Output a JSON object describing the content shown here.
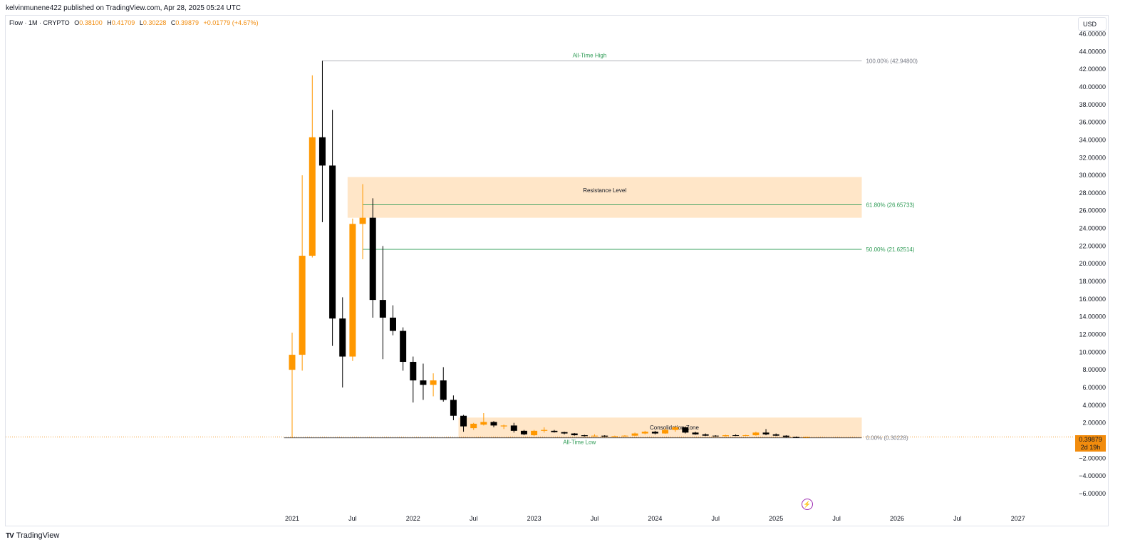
{
  "header": {
    "publisher_line": "kelvinmunene422 published on TradingView.com, Apr 28, 2025 05:24 UTC"
  },
  "legend": {
    "symbol": "Flow · 1M · CRYPTO",
    "open_label": "O",
    "open": "0.38100",
    "high_label": "H",
    "high": "0.41709",
    "low_label": "L",
    "low": "0.30228",
    "close_label": "C",
    "close": "0.39879",
    "change": "+0.01779 (+4.67%)"
  },
  "currency": "USD",
  "price_tag": {
    "price": "0.39879",
    "countdown": "2d 19h"
  },
  "footer": {
    "logo": "TV",
    "brand": "TradingView"
  },
  "colors": {
    "up": "#ff9800",
    "down": "#000000",
    "zone": "#ffe6c8",
    "green": "#2e9b55",
    "fib_text": "#787b86"
  },
  "chart_data": {
    "type": "candlestick",
    "interval": "1M",
    "y_axis": {
      "ylim": [
        -7.0,
        47.0
      ],
      "ticks": [
        "46.00000",
        "44.00000",
        "42.00000",
        "40.00000",
        "38.00000",
        "36.00000",
        "34.00000",
        "32.00000",
        "30.00000",
        "28.00000",
        "26.00000",
        "24.00000",
        "22.00000",
        "20.00000",
        "18.00000",
        "16.00000",
        "14.00000",
        "12.00000",
        "10.00000",
        "8.00000",
        "6.00000",
        "4.00000",
        "2.00000",
        "0.00000",
        "−2.00000",
        "−4.00000",
        "−6.00000"
      ]
    },
    "x_axis": {
      "ticks": [
        {
          "label": "2021",
          "month": 0
        },
        {
          "label": "Jul",
          "month": 6
        },
        {
          "label": "2022",
          "month": 12
        },
        {
          "label": "Jul",
          "month": 18
        },
        {
          "label": "2023",
          "month": 24
        },
        {
          "label": "Jul",
          "month": 30
        },
        {
          "label": "2024",
          "month": 36
        },
        {
          "label": "Jul",
          "month": 42
        },
        {
          "label": "2025",
          "month": 48
        },
        {
          "label": "Jul",
          "month": 54
        },
        {
          "label": "2026",
          "month": 60
        },
        {
          "label": "Jul",
          "month": 66
        },
        {
          "label": "2027",
          "month": 72
        }
      ],
      "month_index_note": "0 = Jan 2021"
    },
    "candles": [
      {
        "m": 0,
        "o": 8.0,
        "h": 12.2,
        "l": 0.3,
        "c": 9.7
      },
      {
        "m": 1,
        "o": 9.7,
        "h": 30.0,
        "l": 7.9,
        "c": 20.9
      },
      {
        "m": 2,
        "o": 20.9,
        "h": 41.3,
        "l": 20.7,
        "c": 34.3
      },
      {
        "m": 3,
        "o": 34.3,
        "h": 42.948,
        "l": 24.7,
        "c": 31.1
      },
      {
        "m": 4,
        "o": 31.1,
        "h": 37.4,
        "l": 10.7,
        "c": 13.8
      },
      {
        "m": 5,
        "o": 13.8,
        "h": 16.2,
        "l": 6.0,
        "c": 9.5
      },
      {
        "m": 6,
        "o": 9.5,
        "h": 25.1,
        "l": 9.0,
        "c": 24.5
      },
      {
        "m": 7,
        "o": 24.5,
        "h": 29.0,
        "l": 20.5,
        "c": 25.2
      },
      {
        "m": 8,
        "o": 25.2,
        "h": 27.4,
        "l": 13.9,
        "c": 15.9
      },
      {
        "m": 9,
        "o": 15.9,
        "h": 22.0,
        "l": 9.2,
        "c": 13.9
      },
      {
        "m": 10,
        "o": 13.9,
        "h": 15.3,
        "l": 11.9,
        "c": 12.4
      },
      {
        "m": 11,
        "o": 12.4,
        "h": 12.8,
        "l": 7.9,
        "c": 8.9
      },
      {
        "m": 12,
        "o": 8.9,
        "h": 9.5,
        "l": 4.3,
        "c": 6.8
      },
      {
        "m": 13,
        "o": 6.8,
        "h": 8.7,
        "l": 4.6,
        "c": 6.3
      },
      {
        "m": 14,
        "o": 6.3,
        "h": 7.6,
        "l": 5.0,
        "c": 6.8
      },
      {
        "m": 15,
        "o": 6.8,
        "h": 8.3,
        "l": 4.4,
        "c": 4.6
      },
      {
        "m": 16,
        "o": 4.6,
        "h": 5.1,
        "l": 2.3,
        "c": 2.8
      },
      {
        "m": 17,
        "o": 2.8,
        "h": 2.9,
        "l": 1.0,
        "c": 1.6
      },
      {
        "m": 18,
        "o": 1.4,
        "h": 2.0,
        "l": 1.2,
        "c": 1.9
      },
      {
        "m": 19,
        "o": 1.8,
        "h": 3.1,
        "l": 1.7,
        "c": 2.1
      },
      {
        "m": 20,
        "o": 2.1,
        "h": 2.2,
        "l": 1.5,
        "c": 1.7
      },
      {
        "m": 21,
        "o": 1.6,
        "h": 1.8,
        "l": 1.3,
        "c": 1.7
      },
      {
        "m": 22,
        "o": 1.7,
        "h": 2.0,
        "l": 0.9,
        "c": 1.1
      },
      {
        "m": 23,
        "o": 1.1,
        "h": 1.2,
        "l": 0.6,
        "c": 0.7
      },
      {
        "m": 24,
        "o": 0.6,
        "h": 1.2,
        "l": 0.5,
        "c": 1.1
      },
      {
        "m": 25,
        "o": 1.1,
        "h": 1.5,
        "l": 0.9,
        "c": 1.2
      },
      {
        "m": 26,
        "o": 1.1,
        "h": 1.2,
        "l": 0.9,
        "c": 0.95
      },
      {
        "m": 27,
        "o": 0.95,
        "h": 1.0,
        "l": 0.7,
        "c": 0.8
      },
      {
        "m": 28,
        "o": 0.8,
        "h": 0.85,
        "l": 0.55,
        "c": 0.6
      },
      {
        "m": 29,
        "o": 0.6,
        "h": 0.65,
        "l": 0.45,
        "c": 0.5
      },
      {
        "m": 30,
        "o": 0.5,
        "h": 0.7,
        "l": 0.45,
        "c": 0.55
      },
      {
        "m": 31,
        "o": 0.55,
        "h": 0.6,
        "l": 0.42,
        "c": 0.45
      },
      {
        "m": 32,
        "o": 0.45,
        "h": 0.55,
        "l": 0.4,
        "c": 0.5
      },
      {
        "m": 33,
        "o": 0.5,
        "h": 0.6,
        "l": 0.45,
        "c": 0.55
      },
      {
        "m": 34,
        "o": 0.55,
        "h": 0.9,
        "l": 0.5,
        "c": 0.8
      },
      {
        "m": 35,
        "o": 0.8,
        "h": 1.1,
        "l": 0.7,
        "c": 1.0
      },
      {
        "m": 36,
        "o": 1.0,
        "h": 1.1,
        "l": 0.7,
        "c": 0.8
      },
      {
        "m": 37,
        "o": 0.8,
        "h": 1.4,
        "l": 0.75,
        "c": 1.2
      },
      {
        "m": 38,
        "o": 1.2,
        "h": 1.6,
        "l": 1.0,
        "c": 1.5
      },
      {
        "m": 39,
        "o": 1.5,
        "h": 1.6,
        "l": 0.8,
        "c": 0.9
      },
      {
        "m": 40,
        "o": 0.9,
        "h": 1.0,
        "l": 0.65,
        "c": 0.7
      },
      {
        "m": 41,
        "o": 0.7,
        "h": 0.8,
        "l": 0.5,
        "c": 0.55
      },
      {
        "m": 42,
        "o": 0.55,
        "h": 0.6,
        "l": 0.45,
        "c": 0.5
      },
      {
        "m": 43,
        "o": 0.5,
        "h": 0.65,
        "l": 0.45,
        "c": 0.6
      },
      {
        "m": 44,
        "o": 0.6,
        "h": 0.7,
        "l": 0.5,
        "c": 0.55
      },
      {
        "m": 45,
        "o": 0.55,
        "h": 0.65,
        "l": 0.5,
        "c": 0.6
      },
      {
        "m": 46,
        "o": 0.6,
        "h": 1.0,
        "l": 0.55,
        "c": 0.9
      },
      {
        "m": 47,
        "o": 0.9,
        "h": 1.3,
        "l": 0.6,
        "c": 0.7
      },
      {
        "m": 48,
        "o": 0.7,
        "h": 0.8,
        "l": 0.5,
        "c": 0.55
      },
      {
        "m": 49,
        "o": 0.55,
        "h": 0.6,
        "l": 0.35,
        "c": 0.4
      },
      {
        "m": 50,
        "o": 0.4,
        "h": 0.45,
        "l": 0.32,
        "c": 0.38
      },
      {
        "m": 51,
        "o": 0.381,
        "h": 0.41709,
        "l": 0.30228,
        "c": 0.39879
      }
    ],
    "fib_levels": [
      {
        "label": "100.00% (42.94800)",
        "value": 42.948,
        "color": "#787b86",
        "from_month": 3,
        "to_month": 56.5
      },
      {
        "label": "61.80% (26.65733)",
        "value": 26.65733,
        "color": "#2e9b55",
        "from_month": 7,
        "to_month": 56.5
      },
      {
        "label": "50.00% (21.62514)",
        "value": 21.62514,
        "color": "#2e9b55",
        "from_month": 7,
        "to_month": 56.5
      },
      {
        "label": "0.00% (0.30228)",
        "value": 0.30228,
        "color": "#787b86",
        "from_month": -0.8,
        "to_month": 56.5
      }
    ],
    "zones": [
      {
        "label": "Resistance Level",
        "y_from": 25.2,
        "y_to": 29.8,
        "from_month": 5.5,
        "to_month": 56.5
      },
      {
        "label": "Consolidation Zone",
        "y_from": 0.3,
        "y_to": 2.6,
        "from_month": 16.5,
        "to_month": 56.5
      }
    ],
    "annotations": [
      {
        "label": "All-Time High",
        "month": 29.5,
        "value": 42.948,
        "position": "above"
      },
      {
        "label": "All-Time Low",
        "month": 28.5,
        "value": 0.30228,
        "position": "below"
      }
    ],
    "current_price": 0.39879
  }
}
